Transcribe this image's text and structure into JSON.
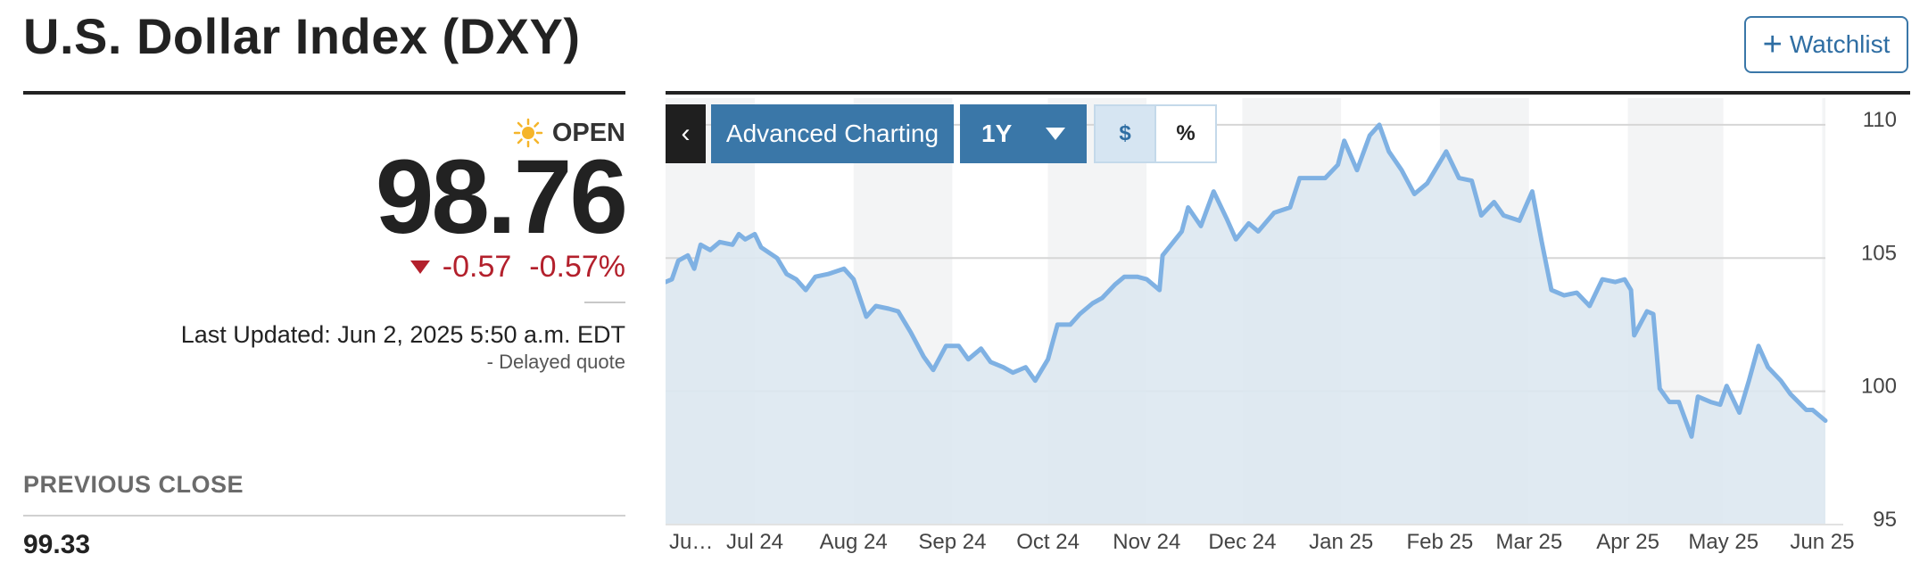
{
  "header": {
    "title": "U.S. Dollar Index (DXY)",
    "watchlist_label": "Watchlist"
  },
  "quote": {
    "status": "OPEN",
    "price": "98.76",
    "change": "-0.57",
    "change_pct": "-0.57%",
    "last_updated": "Last Updated: Jun 2, 2025 5:50 a.m. EDT",
    "delayed": "-  Delayed quote",
    "previous_close_label": "PREVIOUS CLOSE",
    "previous_close": "99.33",
    "down_color": "#b3202c"
  },
  "toolbar": {
    "back_label": "‹",
    "advanced_label": "Advanced Charting",
    "range_label": "1Y",
    "dollar_label": "$",
    "percent_label": "%"
  },
  "chart_data": {
    "type": "area",
    "title": "",
    "xlabel": "",
    "ylabel": "",
    "ylim": [
      95,
      111
    ],
    "xlim": [
      "2024-06-03",
      "2025-06-02"
    ],
    "yticks": [
      95,
      100,
      105,
      110
    ],
    "x_tick_labels": [
      {
        "date": "2024-06-03",
        "label": "Ju…"
      },
      {
        "date": "2024-07-01",
        "label": "Jul 24"
      },
      {
        "date": "2024-08-01",
        "label": "Aug 24"
      },
      {
        "date": "2024-09-01",
        "label": "Sep 24"
      },
      {
        "date": "2024-10-01",
        "label": "Oct 24"
      },
      {
        "date": "2024-11-01",
        "label": "Nov 24"
      },
      {
        "date": "2024-12-01",
        "label": "Dec 24"
      },
      {
        "date": "2025-01-01",
        "label": "Jan 25"
      },
      {
        "date": "2025-02-01",
        "label": "Feb 25"
      },
      {
        "date": "2025-03-01",
        "label": "Mar 25"
      },
      {
        "date": "2025-04-01",
        "label": "Apr 25"
      },
      {
        "date": "2025-05-01",
        "label": "May 25"
      },
      {
        "date": "2025-06-01",
        "label": "Jun 25"
      }
    ],
    "series": [
      {
        "values": [
          [
            "2024-06-03",
            104.1
          ],
          [
            "2024-06-05",
            104.2
          ],
          [
            "2024-06-07",
            104.9
          ],
          [
            "2024-06-10",
            105.1
          ],
          [
            "2024-06-12",
            104.6
          ],
          [
            "2024-06-14",
            105.5
          ],
          [
            "2024-06-17",
            105.3
          ],
          [
            "2024-06-20",
            105.6
          ],
          [
            "2024-06-24",
            105.5
          ],
          [
            "2024-06-26",
            105.9
          ],
          [
            "2024-06-28",
            105.7
          ],
          [
            "2024-07-01",
            105.9
          ],
          [
            "2024-07-03",
            105.4
          ],
          [
            "2024-07-08",
            105.0
          ],
          [
            "2024-07-11",
            104.4
          ],
          [
            "2024-07-14",
            104.2
          ],
          [
            "2024-07-17",
            103.8
          ],
          [
            "2024-07-20",
            104.3
          ],
          [
            "2024-07-24",
            104.4
          ],
          [
            "2024-07-29",
            104.6
          ],
          [
            "2024-08-01",
            104.2
          ],
          [
            "2024-08-05",
            102.8
          ],
          [
            "2024-08-08",
            103.2
          ],
          [
            "2024-08-12",
            103.1
          ],
          [
            "2024-08-15",
            103.0
          ],
          [
            "2024-08-19",
            102.2
          ],
          [
            "2024-08-23",
            101.3
          ],
          [
            "2024-08-26",
            100.8
          ],
          [
            "2024-08-30",
            101.7
          ],
          [
            "2024-09-03",
            101.7
          ],
          [
            "2024-09-06",
            101.2
          ],
          [
            "2024-09-10",
            101.6
          ],
          [
            "2024-09-13",
            101.1
          ],
          [
            "2024-09-17",
            100.9
          ],
          [
            "2024-09-20",
            100.7
          ],
          [
            "2024-09-24",
            100.9
          ],
          [
            "2024-09-27",
            100.4
          ],
          [
            "2024-10-01",
            101.2
          ],
          [
            "2024-10-04",
            102.5
          ],
          [
            "2024-10-08",
            102.5
          ],
          [
            "2024-10-11",
            102.9
          ],
          [
            "2024-10-15",
            103.3
          ],
          [
            "2024-10-18",
            103.5
          ],
          [
            "2024-10-22",
            104.0
          ],
          [
            "2024-10-25",
            104.3
          ],
          [
            "2024-10-29",
            104.3
          ],
          [
            "2024-11-01",
            104.2
          ],
          [
            "2024-11-05",
            103.8
          ],
          [
            "2024-11-06",
            105.1
          ],
          [
            "2024-11-12",
            106.0
          ],
          [
            "2024-11-14",
            106.9
          ],
          [
            "2024-11-18",
            106.2
          ],
          [
            "2024-11-22",
            107.5
          ],
          [
            "2024-11-26",
            106.5
          ],
          [
            "2024-11-29",
            105.7
          ],
          [
            "2024-12-03",
            106.3
          ],
          [
            "2024-12-06",
            106.0
          ],
          [
            "2024-12-11",
            106.7
          ],
          [
            "2024-12-16",
            106.9
          ],
          [
            "2024-12-19",
            108.0
          ],
          [
            "2024-12-23",
            108.0
          ],
          [
            "2024-12-27",
            108.0
          ],
          [
            "2024-12-31",
            108.5
          ],
          [
            "2025-01-02",
            109.4
          ],
          [
            "2025-01-06",
            108.3
          ],
          [
            "2025-01-10",
            109.6
          ],
          [
            "2025-01-13",
            110.0
          ],
          [
            "2025-01-16",
            109.0
          ],
          [
            "2025-01-20",
            108.3
          ],
          [
            "2025-01-24",
            107.4
          ],
          [
            "2025-01-28",
            107.8
          ],
          [
            "2025-01-31",
            108.4
          ],
          [
            "2025-02-03",
            109.0
          ],
          [
            "2025-02-07",
            108.0
          ],
          [
            "2025-02-11",
            107.9
          ],
          [
            "2025-02-14",
            106.6
          ],
          [
            "2025-02-18",
            107.1
          ],
          [
            "2025-02-21",
            106.6
          ],
          [
            "2025-02-26",
            106.4
          ],
          [
            "2025-03-02",
            107.5
          ],
          [
            "2025-03-05",
            105.6
          ],
          [
            "2025-03-08",
            103.8
          ],
          [
            "2025-03-12",
            103.6
          ],
          [
            "2025-03-16",
            103.7
          ],
          [
            "2025-03-20",
            103.2
          ],
          [
            "2025-03-24",
            104.2
          ],
          [
            "2025-03-28",
            104.1
          ],
          [
            "2025-03-31",
            104.2
          ],
          [
            "2025-04-02",
            103.8
          ],
          [
            "2025-04-03",
            102.1
          ],
          [
            "2025-04-07",
            103.0
          ],
          [
            "2025-04-09",
            102.9
          ],
          [
            "2025-04-11",
            100.1
          ],
          [
            "2025-04-14",
            99.6
          ],
          [
            "2025-04-17",
            99.6
          ],
          [
            "2025-04-21",
            98.3
          ],
          [
            "2025-04-23",
            99.8
          ],
          [
            "2025-04-27",
            99.6
          ],
          [
            "2025-04-30",
            99.5
          ],
          [
            "2025-05-02",
            100.2
          ],
          [
            "2025-05-06",
            99.2
          ],
          [
            "2025-05-09",
            100.4
          ],
          [
            "2025-05-12",
            101.7
          ],
          [
            "2025-05-15",
            100.9
          ],
          [
            "2025-05-19",
            100.4
          ],
          [
            "2025-05-22",
            99.9
          ],
          [
            "2025-05-27",
            99.3
          ],
          [
            "2025-05-29",
            99.3
          ],
          [
            "2025-06-02",
            98.9
          ]
        ]
      }
    ],
    "line_color": "#7fb1e3",
    "fill_color": "#dde8f1",
    "grid": true,
    "y_axis_side": "right"
  }
}
